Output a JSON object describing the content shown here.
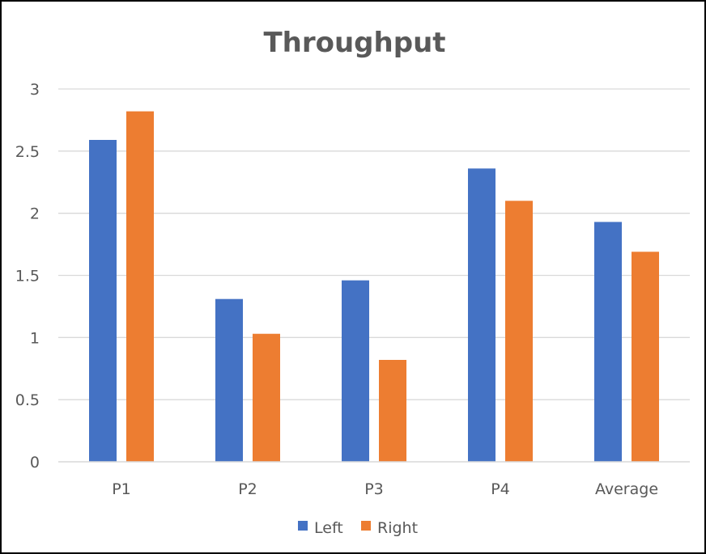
{
  "chart_data": {
    "type": "bar",
    "title": "Throughput",
    "xlabel": "",
    "ylabel": "",
    "categories": [
      "P1",
      "P2",
      "P3",
      "P4",
      "Average"
    ],
    "series": [
      {
        "name": "Left",
        "color": "#4472C4",
        "values": [
          2.59,
          1.31,
          1.46,
          2.36,
          1.93
        ]
      },
      {
        "name": "Right",
        "color": "#ED7D31",
        "values": [
          2.82,
          1.03,
          0.82,
          2.1,
          1.69
        ]
      }
    ],
    "ylim": [
      0,
      3
    ],
    "yticks": [
      "0",
      "0.5",
      "1",
      "1.5",
      "2",
      "2.5",
      "3"
    ],
    "grid": true,
    "legend_position": "bottom"
  }
}
